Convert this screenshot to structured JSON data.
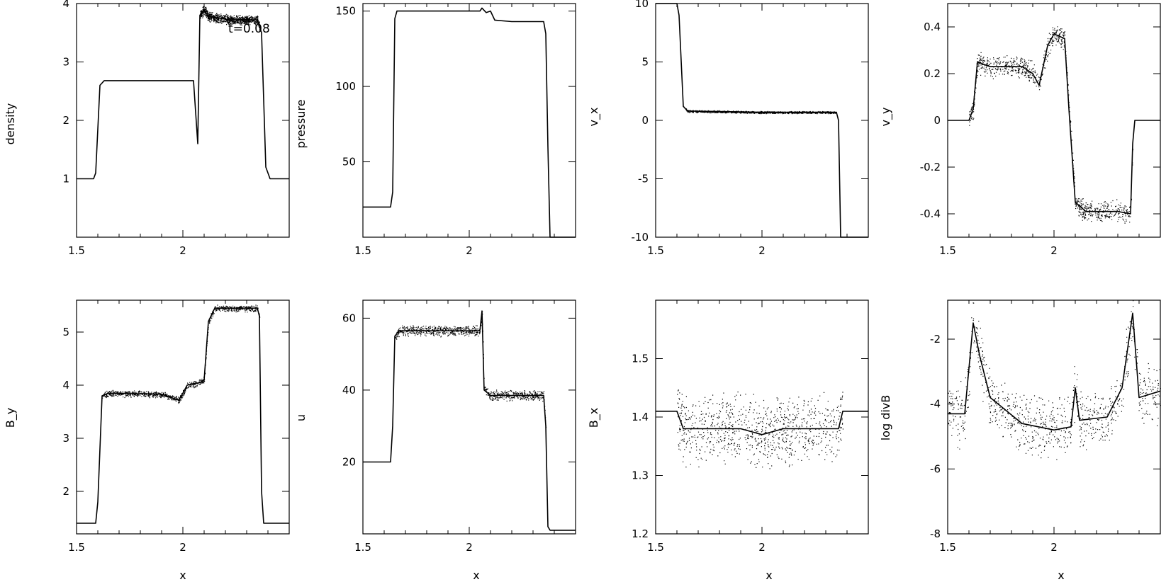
{
  "chart_data": [
    {
      "type": "scatter",
      "id": "density",
      "ylabel": "density",
      "xlabel": "",
      "xlim": [
        1.5,
        2.5
      ],
      "ylim": [
        0,
        4
      ],
      "xticks": [
        "1.5",
        "2"
      ],
      "xtick_values": [
        1.5,
        2
      ],
      "yticks": [
        "1",
        "2",
        "3",
        "4"
      ],
      "ytick_values": [
        1,
        2,
        3,
        4
      ],
      "annotation": "t=0.08",
      "points": [
        [
          1.5,
          1
        ],
        [
          1.58,
          1
        ],
        [
          1.59,
          1.1
        ],
        [
          1.61,
          2.6
        ],
        [
          1.63,
          2.68
        ],
        [
          2.05,
          2.68
        ],
        [
          2.07,
          1.6
        ],
        [
          2.08,
          3.8
        ],
        [
          2.1,
          3.9
        ],
        [
          2.12,
          3.78
        ],
        [
          2.22,
          3.72
        ],
        [
          2.35,
          3.72
        ],
        [
          2.37,
          3.5
        ],
        [
          2.39,
          1.2
        ],
        [
          2.41,
          1
        ],
        [
          2.5,
          1
        ]
      ],
      "noise": 0.07,
      "noise_range": [
        2.08,
        2.36
      ]
    },
    {
      "type": "scatter",
      "id": "pressure",
      "ylabel": "pressure",
      "xlabel": "",
      "xlim": [
        1.5,
        2.5
      ],
      "ylim": [
        0,
        155
      ],
      "xticks": [
        "1.5",
        "2"
      ],
      "xtick_values": [
        1.5,
        2
      ],
      "yticks": [
        "50",
        "100",
        "150"
      ],
      "ytick_values": [
        50,
        100,
        150
      ],
      "points": [
        [
          1.5,
          20
        ],
        [
          1.63,
          20
        ],
        [
          1.64,
          30
        ],
        [
          1.65,
          145
        ],
        [
          1.66,
          150
        ],
        [
          1.9,
          150
        ],
        [
          2.05,
          150
        ],
        [
          2.06,
          152
        ],
        [
          2.08,
          149
        ],
        [
          2.1,
          150
        ],
        [
          2.12,
          144
        ],
        [
          2.2,
          143
        ],
        [
          2.35,
          143
        ],
        [
          2.36,
          135
        ],
        [
          2.37,
          60
        ],
        [
          2.38,
          0
        ],
        [
          2.5,
          0
        ]
      ],
      "noise": 0,
      "noise_range": [
        0,
        0
      ]
    },
    {
      "type": "scatter",
      "id": "vx",
      "ylabel": "v_x",
      "xlabel": "",
      "xlim": [
        1.5,
        2.5
      ],
      "ylim": [
        -10,
        10
      ],
      "xticks": [
        "1.5",
        "2"
      ],
      "xtick_values": [
        1.5,
        2
      ],
      "yticks": [
        "-10",
        "-5",
        "0",
        "5",
        "10"
      ],
      "ytick_values": [
        -10,
        -5,
        0,
        5,
        10
      ],
      "points": [
        [
          1.5,
          10
        ],
        [
          1.6,
          10
        ],
        [
          1.61,
          9
        ],
        [
          1.63,
          1.2
        ],
        [
          1.65,
          0.8
        ],
        [
          2.0,
          0.7
        ],
        [
          2.35,
          0.7
        ],
        [
          2.36,
          0
        ],
        [
          2.37,
          -10
        ],
        [
          2.5,
          -10
        ]
      ],
      "noise": 0.08,
      "noise_range": [
        1.64,
        2.35
      ]
    },
    {
      "type": "scatter",
      "id": "vy",
      "ylabel": "v_y",
      "xlabel": "",
      "xlim": [
        1.5,
        2.5
      ],
      "ylim": [
        -0.5,
        0.5
      ],
      "xticks": [
        "1.5",
        "2"
      ],
      "xtick_values": [
        1.5,
        2
      ],
      "yticks": [
        "-0.4",
        "-0.2",
        "0",
        "0.2",
        "0.4"
      ],
      "ytick_values": [
        -0.4,
        -0.2,
        0,
        0.2,
        0.4
      ],
      "points": [
        [
          1.5,
          0
        ],
        [
          1.6,
          0
        ],
        [
          1.62,
          0.05
        ],
        [
          1.64,
          0.25
        ],
        [
          1.7,
          0.23
        ],
        [
          1.85,
          0.23
        ],
        [
          1.9,
          0.2
        ],
        [
          1.93,
          0.15
        ],
        [
          1.97,
          0.32
        ],
        [
          2.0,
          0.37
        ],
        [
          2.05,
          0.35
        ],
        [
          2.07,
          0.05
        ],
        [
          2.1,
          -0.35
        ],
        [
          2.15,
          -0.39
        ],
        [
          2.3,
          -0.39
        ],
        [
          2.36,
          -0.4
        ],
        [
          2.37,
          -0.1
        ],
        [
          2.38,
          0
        ],
        [
          2.5,
          0
        ]
      ],
      "noise": 0.04,
      "noise_range": [
        1.6,
        2.37
      ]
    },
    {
      "type": "scatter",
      "id": "By",
      "ylabel": "B_y",
      "xlabel": "x",
      "xlim": [
        1.5,
        2.5
      ],
      "ylim": [
        1.2,
        5.6
      ],
      "xticks": [
        "1.5",
        "2"
      ],
      "xtick_values": [
        1.5,
        2
      ],
      "yticks": [
        "2",
        "3",
        "4",
        "5"
      ],
      "ytick_values": [
        2,
        3,
        4,
        5
      ],
      "points": [
        [
          1.5,
          1.4
        ],
        [
          1.59,
          1.4
        ],
        [
          1.6,
          1.8
        ],
        [
          1.62,
          3.8
        ],
        [
          1.65,
          3.85
        ],
        [
          1.9,
          3.83
        ],
        [
          1.98,
          3.72
        ],
        [
          2.0,
          3.85
        ],
        [
          2.02,
          4.0
        ],
        [
          2.08,
          4.05
        ],
        [
          2.1,
          4.1
        ],
        [
          2.12,
          5.2
        ],
        [
          2.15,
          5.45
        ],
        [
          2.35,
          5.45
        ],
        [
          2.36,
          5.3
        ],
        [
          2.37,
          2.0
        ],
        [
          2.38,
          1.4
        ],
        [
          2.5,
          1.4
        ]
      ],
      "noise": 0.05,
      "noise_range": [
        1.62,
        2.36
      ]
    },
    {
      "type": "scatter",
      "id": "u",
      "ylabel": "u",
      "xlabel": "x",
      "xlim": [
        1.5,
        2.5
      ],
      "ylim": [
        0,
        65
      ],
      "xticks": [
        "1.5",
        "2"
      ],
      "xtick_values": [
        1.5,
        2
      ],
      "yticks": [
        "20",
        "40",
        "60"
      ],
      "ytick_values": [
        20,
        40,
        60
      ],
      "points": [
        [
          1.5,
          20
        ],
        [
          1.63,
          20
        ],
        [
          1.64,
          30
        ],
        [
          1.65,
          55
        ],
        [
          1.67,
          56.5
        ],
        [
          2.05,
          56.5
        ],
        [
          2.06,
          62
        ],
        [
          2.07,
          40
        ],
        [
          2.1,
          38.5
        ],
        [
          2.35,
          38.5
        ],
        [
          2.36,
          30
        ],
        [
          2.37,
          2
        ],
        [
          2.38,
          1
        ],
        [
          2.5,
          1
        ]
      ],
      "noise": 1.2,
      "noise_range": [
        1.65,
        2.36
      ]
    },
    {
      "type": "scatter",
      "id": "Bx",
      "ylabel": "B_x",
      "xlabel": "x",
      "xlim": [
        1.5,
        2.5
      ],
      "ylim": [
        1.2,
        1.6
      ],
      "xticks": [
        "1.5",
        "2"
      ],
      "xtick_values": [
        1.5,
        2
      ],
      "yticks": [
        "1.2",
        "1.3",
        "1.4",
        "1.5"
      ],
      "ytick_values": [
        1.2,
        1.3,
        1.4,
        1.5
      ],
      "points": [
        [
          1.5,
          1.41
        ],
        [
          1.58,
          1.41
        ],
        [
          1.6,
          1.41
        ],
        [
          1.63,
          1.38
        ],
        [
          1.9,
          1.38
        ],
        [
          2.0,
          1.37
        ],
        [
          2.1,
          1.38
        ],
        [
          2.36,
          1.38
        ],
        [
          2.38,
          1.41
        ],
        [
          2.5,
          1.41
        ]
      ],
      "noise": 0.05,
      "noise_range": [
        1.6,
        2.38
      ]
    },
    {
      "type": "scatter",
      "id": "divB",
      "ylabel": "log divB",
      "xlabel": "x",
      "xlim": [
        1.5,
        2.5
      ],
      "ylim": [
        -8,
        -0.8
      ],
      "xticks": [
        "1.5",
        "2"
      ],
      "xtick_values": [
        1.5,
        2
      ],
      "yticks": [
        "-8",
        "-6",
        "-4",
        "-2"
      ],
      "ytick_values": [
        -8,
        -6,
        -4,
        -2
      ],
      "points": [
        [
          1.5,
          -4.3
        ],
        [
          1.58,
          -4.3
        ],
        [
          1.62,
          -1.5
        ],
        [
          1.65,
          -2.5
        ],
        [
          1.7,
          -3.8
        ],
        [
          1.85,
          -4.6
        ],
        [
          2.0,
          -4.8
        ],
        [
          2.08,
          -4.7
        ],
        [
          2.1,
          -3.5
        ],
        [
          2.12,
          -4.5
        ],
        [
          2.25,
          -4.4
        ],
        [
          2.32,
          -3.5
        ],
        [
          2.37,
          -1.2
        ],
        [
          2.4,
          -3.8
        ],
        [
          2.5,
          -3.6
        ]
      ],
      "noise": 0.8,
      "noise_range": [
        1.5,
        2.5
      ]
    }
  ]
}
